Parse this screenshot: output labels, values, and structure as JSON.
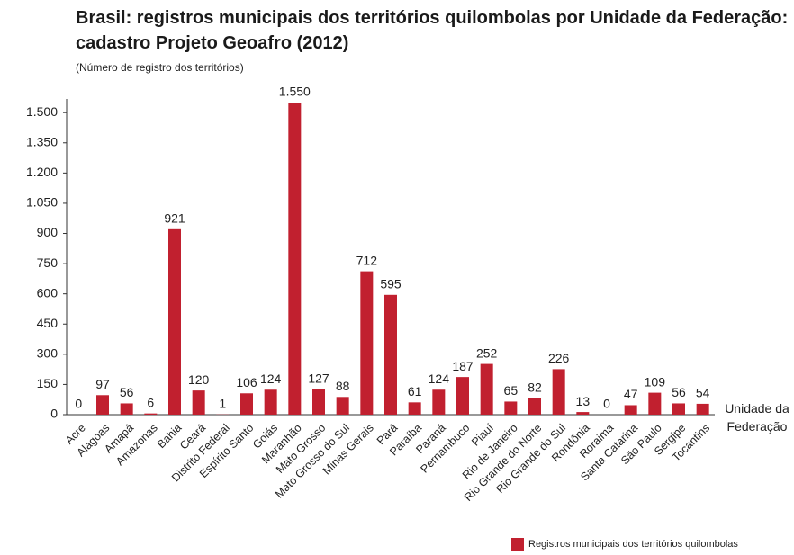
{
  "chart_data": {
    "type": "bar",
    "title": [
      "Brasil: registros municipais dos territórios quilombolas por Unidade da Federação:",
      "cadastro Projeto Geoafro (2012)"
    ],
    "subtitle": "(Número de registro dos territórios)",
    "x_label": "Unidade da Federação",
    "categories": [
      "Acre",
      "Alagoas",
      "Amapá",
      "Amazonas",
      "Bahia",
      "Ceará",
      "Distrito Federal",
      "Espírito Santo",
      "Goiás",
      "Maranhão",
      "Mato Grosso",
      "Mato Grosso do Sul",
      "Minas Gerais",
      "Pará",
      "Paraíba",
      "Paraná",
      "Pernambuco",
      "Piauí",
      "Rio de Janeiro",
      "Rio Grande do Norte",
      "Rio Grande do Sul",
      "Rondônia",
      "Roraima",
      "Santa Catarina",
      "São Paulo",
      "Sergipe",
      "Tocantins"
    ],
    "series": [
      {
        "name": "Registros municipais dos territórios quilombolas",
        "color": "#c1202f",
        "values": [
          0,
          97,
          56,
          6,
          921,
          120,
          1,
          106,
          124,
          1550,
          127,
          88,
          712,
          595,
          61,
          124,
          187,
          252,
          65,
          82,
          226,
          13,
          0,
          47,
          109,
          56,
          54
        ],
        "value_labels": [
          "0",
          "97",
          "56",
          "6",
          "921",
          "120",
          "1",
          "106",
          "124",
          "1.550",
          "127",
          "88",
          "712",
          "595",
          "61",
          "124",
          "187",
          "252",
          "65",
          "82",
          "226",
          "13",
          "0",
          "47",
          "109",
          "56",
          "54"
        ]
      }
    ],
    "ylim": [
      0,
      1550
    ],
    "yticks": [
      0,
      150,
      300,
      450,
      600,
      750,
      900,
      {
        "value": 1050,
        "label": "1.050"
      },
      {
        "value": 1200,
        "label": "1.200"
      },
      {
        "value": 1350,
        "label": "1.350"
      },
      {
        "value": 1500,
        "label": "1.500"
      }
    ],
    "legend": "bottom-right"
  }
}
